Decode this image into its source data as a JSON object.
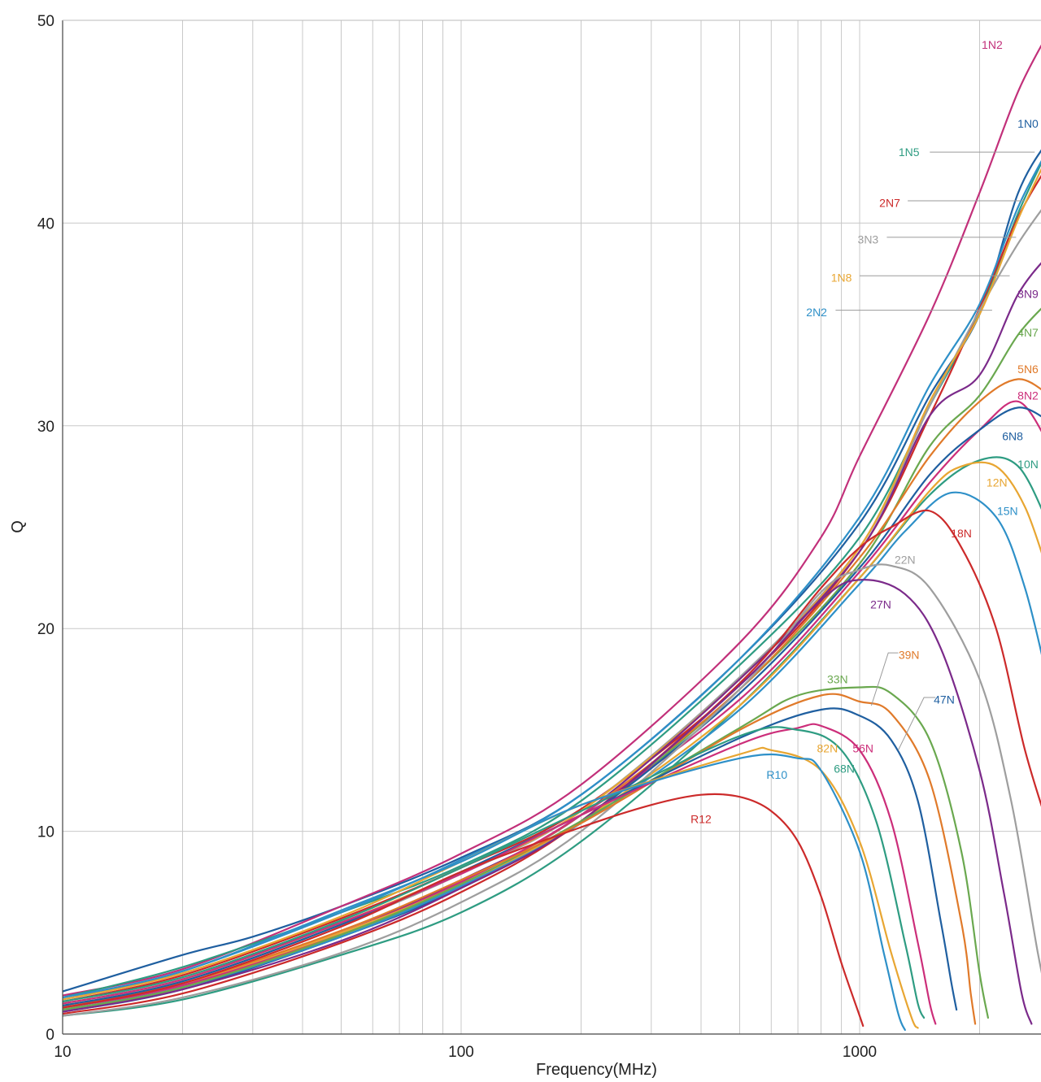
{
  "chart_data": {
    "type": "line",
    "title": "",
    "xlabel": "Frequency(MHz)",
    "ylabel": "Q",
    "xscale": "log",
    "xlim": [
      10,
      3000
    ],
    "ylim": [
      0,
      50
    ],
    "grid": true,
    "legend": "inline labels",
    "x_tick_labels": [
      {
        "value": 10,
        "label": "10"
      },
      {
        "value": 100,
        "label": "100"
      },
      {
        "value": 1000,
        "label": "1000"
      }
    ],
    "y_tick_labels": [
      {
        "value": 0,
        "label": "0"
      },
      {
        "value": 10,
        "label": "10"
      },
      {
        "value": 20,
        "label": "20"
      },
      {
        "value": 30,
        "label": "30"
      },
      {
        "value": 40,
        "label": "40"
      },
      {
        "value": 50,
        "label": "50"
      }
    ],
    "series": [
      {
        "name": "1N0",
        "color": "#1f5fa0",
        "label_at": [
          3000,
          44.9
        ],
        "x": [
          10,
          20,
          30,
          50,
          100,
          200,
          500,
          1000,
          1500,
          2000,
          2500,
          3000
        ],
        "y": [
          2.1,
          3.9,
          4.8,
          6.3,
          8.7,
          11.8,
          18.5,
          25.2,
          31.5,
          35.5,
          41.5,
          44.2
        ]
      },
      {
        "name": "1N2",
        "color": "#c2307a",
        "label_at": [
          2150,
          48.8
        ],
        "x": [
          10,
          20,
          50,
          100,
          200,
          500,
          800,
          1000,
          1500,
          2000,
          2500,
          3000
        ],
        "y": [
          1.9,
          3.2,
          6.3,
          8.9,
          12.3,
          19.3,
          24.5,
          28.5,
          35.5,
          41.5,
          46.5,
          49.5
        ]
      },
      {
        "name": "1N5",
        "color": "#2e9c82",
        "label_at": [
          1330,
          43.5
        ],
        "leader": [
          [
            1500,
            43.5
          ],
          [
            2750,
            43.5
          ]
        ],
        "x": [
          10,
          20,
          50,
          100,
          200,
          500,
          1000,
          1500,
          2000,
          2500,
          3000
        ],
        "y": [
          1.8,
          3.3,
          6.0,
          8.3,
          11.5,
          18.2,
          24.5,
          31.0,
          35.6,
          40.5,
          43.8
        ]
      },
      {
        "name": "2N7",
        "color": "#cc2a2a",
        "label_at": [
          1190,
          41.0
        ],
        "leader": [
          [
            1320,
            41.1
          ],
          [
            2600,
            41.1
          ]
        ],
        "x": [
          10,
          20,
          50,
          100,
          200,
          500,
          1000,
          1500,
          2000,
          2500,
          3000
        ],
        "y": [
          1.6,
          2.9,
          5.7,
          8.2,
          11.1,
          17.2,
          23.8,
          30.5,
          35.8,
          40.3,
          43.0
        ]
      },
      {
        "name": "3N3",
        "color": "#9e9e9e",
        "label_at": [
          1050,
          39.2
        ],
        "leader": [
          [
            1170,
            39.3
          ],
          [
            2470,
            39.3
          ]
        ],
        "x": [
          10,
          20,
          50,
          100,
          200,
          500,
          1000,
          1500,
          2000,
          2500,
          3000
        ],
        "y": [
          1.4,
          2.6,
          5.4,
          7.9,
          11.0,
          17.6,
          24.0,
          31.0,
          35.7,
          39.0,
          41.2
        ]
      },
      {
        "name": "1N8",
        "color": "#e8a632",
        "label_at": [
          900,
          37.3
        ],
        "leader": [
          [
            1000,
            37.4
          ],
          [
            2380,
            37.4
          ]
        ],
        "x": [
          10,
          20,
          50,
          100,
          200,
          500,
          1000,
          1500,
          2000,
          2500,
          3000
        ],
        "y": [
          1.5,
          2.7,
          5.5,
          8.0,
          11.0,
          17.5,
          24.0,
          31.2,
          35.5,
          40.2,
          43.5
        ]
      },
      {
        "name": "2N2",
        "color": "#2e90c8",
        "label_at": [
          780,
          35.6
        ],
        "leader": [
          [
            870,
            35.7
          ],
          [
            2150,
            35.7
          ]
        ],
        "x": [
          10,
          20,
          50,
          100,
          200,
          500,
          1000,
          1500,
          2000,
          2500,
          3000
        ],
        "y": [
          1.7,
          3.1,
          6.0,
          8.6,
          11.8,
          18.5,
          25.5,
          32.0,
          36.0,
          40.8,
          43.8
        ]
      },
      {
        "name": "3N9",
        "color": "#7b2a8a",
        "label_at": [
          2950,
          36.5
        ],
        "x": [
          10,
          20,
          50,
          100,
          200,
          500,
          1000,
          1500,
          2000,
          2500,
          3000
        ],
        "y": [
          1.3,
          2.4,
          5.0,
          7.6,
          10.8,
          17.5,
          23.8,
          30.5,
          32.5,
          36.5,
          38.5
        ]
      },
      {
        "name": "4N7",
        "color": "#6aa84f",
        "label_at": [
          2950,
          34.6
        ],
        "x": [
          10,
          20,
          50,
          100,
          200,
          500,
          1000,
          1500,
          2000,
          2500,
          3000
        ],
        "y": [
          1.2,
          2.3,
          4.9,
          7.3,
          10.5,
          17.0,
          23.2,
          29.0,
          31.5,
          34.5,
          36.2
        ]
      },
      {
        "name": "5N6",
        "color": "#e07a2a",
        "label_at": [
          2730,
          32.8
        ],
        "x": [
          10,
          20,
          50,
          100,
          200,
          500,
          1000,
          1500,
          2000,
          2500,
          3000
        ],
        "y": [
          1.2,
          2.3,
          5.0,
          7.5,
          10.8,
          17.0,
          23.5,
          28.5,
          31.2,
          32.3,
          31.5
        ]
      },
      {
        "name": "8N2",
        "color": "#cc2e7a",
        "label_at": [
          2700,
          31.5
        ],
        "x": [
          10,
          20,
          50,
          100,
          200,
          500,
          1000,
          1500,
          2000,
          2500,
          3000
        ],
        "y": [
          1.3,
          2.4,
          5.0,
          7.5,
          10.8,
          16.5,
          22.8,
          27.2,
          29.8,
          31.2,
          29.0
        ]
      },
      {
        "name": "6N8",
        "color": "#1f5fa0",
        "label_at": [
          2420,
          29.5
        ],
        "x": [
          10,
          20,
          50,
          100,
          200,
          500,
          1000,
          1500,
          2000,
          2500,
          3000
        ],
        "y": [
          1.1,
          2.2,
          4.8,
          7.2,
          10.5,
          16.8,
          23.0,
          27.6,
          29.8,
          30.9,
          30.2
        ]
      },
      {
        "name": "10N",
        "color": "#2e9c82",
        "label_at": [
          2850,
          28.1
        ],
        "x": [
          10,
          20,
          50,
          100,
          200,
          500,
          1000,
          1500,
          2000,
          2500,
          3000
        ],
        "y": [
          0.9,
          1.7,
          3.9,
          6.0,
          9.5,
          16.2,
          22.5,
          26.6,
          28.3,
          28.0,
          25.0
        ]
      },
      {
        "name": "12N",
        "color": "#e8a632",
        "label_at": [
          2210,
          27.2
        ],
        "x": [
          10,
          20,
          50,
          100,
          200,
          500,
          1000,
          1500,
          1800,
          2200,
          2600,
          3000
        ],
        "y": [
          1.4,
          2.5,
          5.0,
          7.4,
          10.5,
          16.2,
          22.5,
          26.8,
          28.0,
          28.0,
          26.0,
          22.5
        ]
      },
      {
        "name": "15N",
        "color": "#2e90c8",
        "label_at": [
          2350,
          25.8
        ],
        "x": [
          10,
          20,
          50,
          100,
          200,
          500,
          1000,
          1300,
          1700,
          2200,
          2600,
          3000
        ],
        "y": [
          1.2,
          2.3,
          4.8,
          7.3,
          10.4,
          16.0,
          22.2,
          24.8,
          26.7,
          25.5,
          22.0,
          17.0
        ]
      },
      {
        "name": "18N",
        "color": "#cc2a2a",
        "label_at": [
          1800,
          24.7
        ],
        "x": [
          10,
          20,
          50,
          100,
          200,
          500,
          800,
          1000,
          1200,
          1500,
          1800,
          2200,
          2600,
          3000
        ],
        "y": [
          1.0,
          2.0,
          4.5,
          7.0,
          10.5,
          17.3,
          22.0,
          24.0,
          25.0,
          25.8,
          24.0,
          20.0,
          14.0,
          10.0
        ]
      },
      {
        "name": "22N",
        "color": "#9e9e9e",
        "label_at": [
          1300,
          23.4
        ],
        "x": [
          10,
          20,
          50,
          100,
          200,
          500,
          800,
          1000,
          1200,
          1500,
          2000,
          2400,
          2800,
          3000
        ],
        "y": [
          0.9,
          1.8,
          4.0,
          6.5,
          10.0,
          17.0,
          21.8,
          22.9,
          23.1,
          22.0,
          17.5,
          11.5,
          4.0,
          1.3
        ]
      },
      {
        "name": "27N",
        "color": "#7b2a8a",
        "label_at": [
          1130,
          21.2
        ],
        "x": [
          10,
          20,
          50,
          100,
          200,
          500,
          800,
          1000,
          1300,
          1600,
          2000,
          2300,
          2550,
          2700
        ],
        "y": [
          1.1,
          2.2,
          4.6,
          7.2,
          10.5,
          17.2,
          21.4,
          22.4,
          21.7,
          19.0,
          13.0,
          7.0,
          2.0,
          0.5
        ]
      },
      {
        "name": "33N",
        "color": "#6aa84f",
        "label_at": [
          880,
          17.5
        ],
        "x": [
          10,
          20,
          50,
          100,
          200,
          500,
          700,
          1000,
          1200,
          1500,
          1800,
          2000,
          2100
        ],
        "y": [
          1.2,
          2.3,
          4.9,
          7.4,
          10.5,
          15.1,
          16.7,
          17.1,
          16.8,
          14.5,
          9.0,
          3.0,
          0.8
        ]
      },
      {
        "name": "39N",
        "color": "#e07a2a",
        "label_at": [
          1330,
          18.7
        ],
        "leader": [
          [
            1250,
            18.8
          ],
          [
            1180,
            18.8
          ],
          [
            1070,
            16.2
          ]
        ],
        "x": [
          10,
          20,
          50,
          100,
          200,
          500,
          800,
          1000,
          1200,
          1500,
          1800,
          1900,
          1950
        ],
        "y": [
          1.3,
          2.5,
          5.1,
          7.6,
          10.4,
          15.0,
          16.7,
          16.4,
          15.8,
          12.5,
          5.5,
          2.0,
          0.5
        ]
      },
      {
        "name": "47N",
        "color": "#1f5fa0",
        "label_at": [
          1630,
          16.5
        ],
        "leader": [
          [
            1550,
            16.6
          ],
          [
            1450,
            16.6
          ],
          [
            1250,
            14.0
          ]
        ],
        "x": [
          10,
          20,
          50,
          100,
          200,
          500,
          800,
          1000,
          1200,
          1400,
          1600,
          1700,
          1750
        ],
        "y": [
          1.4,
          2.6,
          5.4,
          8.0,
          10.8,
          14.6,
          16.0,
          15.7,
          14.5,
          11.5,
          5.5,
          2.5,
          1.2
        ]
      },
      {
        "name": "56N",
        "color": "#cc2e7a",
        "label_at": [
          1020,
          14.1
        ],
        "x": [
          10,
          20,
          50,
          100,
          200,
          500,
          700,
          800,
          1000,
          1200,
          1400,
          1500,
          1550
        ],
        "y": [
          1.5,
          2.7,
          5.5,
          7.9,
          10.8,
          14.3,
          15.1,
          15.2,
          14.0,
          10.5,
          4.5,
          1.5,
          0.5
        ]
      },
      {
        "name": "68N",
        "color": "#2e9c82",
        "label_at": [
          915,
          13.1
        ],
        "x": [
          10,
          20,
          50,
          100,
          200,
          500,
          700,
          900,
          1100,
          1300,
          1400,
          1450
        ],
        "y": [
          1.6,
          2.8,
          5.6,
          8.2,
          11.0,
          14.7,
          15.0,
          14.0,
          10.5,
          4.5,
          1.5,
          0.8
        ]
      },
      {
        "name": "82N",
        "color": "#e8a632",
        "label_at": [
          830,
          14.1
        ],
        "x": [
          10,
          20,
          50,
          100,
          200,
          500,
          600,
          800,
          1000,
          1200,
          1350,
          1400
        ],
        "y": [
          1.7,
          3.0,
          5.8,
          8.5,
          11.3,
          13.8,
          14.0,
          13.0,
          9.5,
          4.0,
          0.8,
          0.3
        ]
      },
      {
        "name": "R10",
        "color": "#2e90c8",
        "label_at": [
          620,
          12.8
        ],
        "x": [
          10,
          20,
          50,
          100,
          200,
          500,
          700,
          800,
          1000,
          1150,
          1250,
          1300
        ],
        "y": [
          1.8,
          3.1,
          6.1,
          8.5,
          11.3,
          13.6,
          13.6,
          13.0,
          9.0,
          4.0,
          1.0,
          0.2
        ]
      },
      {
        "name": "R12",
        "color": "#cc2a2a",
        "label_at": [
          400,
          10.6
        ],
        "x": [
          10,
          20,
          50,
          100,
          200,
          300,
          400,
          500,
          600,
          700,
          800,
          900,
          1000,
          1020
        ],
        "y": [
          1.3,
          2.5,
          5.3,
          8.0,
          10.2,
          11.3,
          11.8,
          11.7,
          11.0,
          9.5,
          6.8,
          3.5,
          0.9,
          0.4
        ]
      }
    ]
  }
}
